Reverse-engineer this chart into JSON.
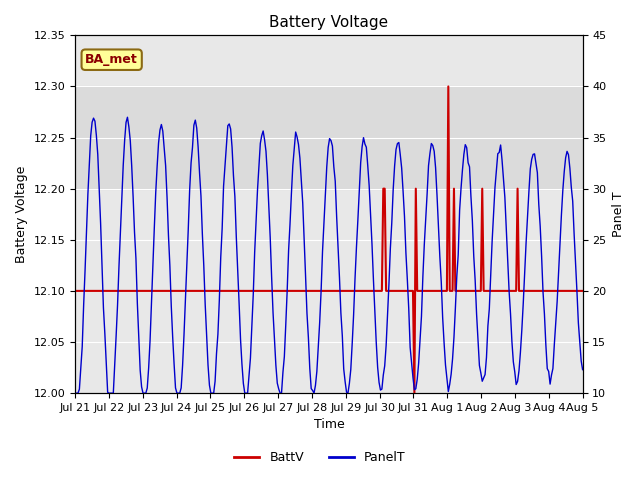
{
  "title": "Battery Voltage",
  "xlabel": "Time",
  "ylabel_left": "Battery Voltage",
  "ylabel_right": "Panel T",
  "ylim_left": [
    12.0,
    12.35
  ],
  "ylim_right": [
    10,
    45
  ],
  "yticks_left": [
    12.0,
    12.05,
    12.1,
    12.15,
    12.2,
    12.25,
    12.3,
    12.35
  ],
  "yticks_right": [
    10,
    15,
    20,
    25,
    30,
    35,
    40,
    45
  ],
  "xtick_labels": [
    "Jul 21",
    "Jul 22",
    "Jul 23",
    "Jul 24",
    "Jul 25",
    "Jul 26",
    "Jul 27",
    "Jul 28",
    "Jul 29",
    "Jul 30",
    "Jul 31",
    "Aug 1",
    "Aug 2",
    "Aug 3",
    "Aug 4",
    "Aug 5"
  ],
  "fig_bg_color": "#ffffff",
  "plot_bg_color": "#e8e8e8",
  "band_color": "#d0d0d0",
  "batt_color": "#cc0000",
  "panel_color": "#0000cc",
  "grid_color": "#ffffff",
  "legend_label_batt": "BattV",
  "legend_label_panel": "PanelT",
  "station_label": "BA_met",
  "station_label_bg": "#ffff99",
  "station_label_border": "#8B6914",
  "title_fontsize": 11,
  "axis_fontsize": 9,
  "tick_fontsize": 8,
  "legend_fontsize": 9
}
